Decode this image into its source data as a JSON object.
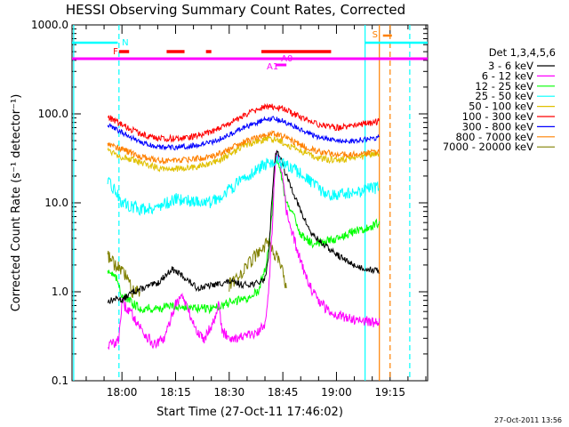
{
  "chart_data": {
    "type": "line",
    "title": "HESSI Observing Summary Count Rates, Corrected",
    "xlabel": "Start Time (27-Oct-11 17:46:02)",
    "ylabel": "Corrected Count Rate (s⁻¹ detector⁻¹)",
    "yscale": "log",
    "ylim": [
      0.1,
      1000
    ],
    "xlim": [
      "17:46:02",
      "19:25:30"
    ],
    "x_tick_labels": [
      "18:00",
      "18:15",
      "18:30",
      "18:45",
      "19:00",
      "19:15"
    ],
    "y_tick_labels": [
      "0.1",
      "1.0",
      "10.0",
      "100.0",
      "1000.0"
    ],
    "legend_title": "Det 1,3,4,5,6",
    "legend_position": "right",
    "grid": false,
    "timestamp": "27-Oct-2011 13:56",
    "series": [
      {
        "name": "3 - 6 keV",
        "color": "#000000",
        "x": [
          "17:56",
          "17:59",
          "18:00",
          "18:03",
          "18:06",
          "18:10",
          "18:14",
          "18:17",
          "18:21",
          "18:26",
          "18:30",
          "18:34",
          "18:38",
          "18:40",
          "18:41",
          "18:42",
          "18:43",
          "18:44",
          "18:46",
          "18:48",
          "18:50",
          "18:53",
          "18:56",
          "18:59",
          "19:03",
          "19:06",
          "19:09",
          "19:12"
        ],
        "y": [
          0.78,
          0.85,
          0.8,
          1.0,
          1.1,
          1.25,
          1.8,
          1.5,
          1.1,
          1.2,
          1.3,
          1.2,
          1.25,
          1.4,
          2.5,
          12,
          38,
          35,
          20,
          13,
          8,
          4.5,
          3.5,
          2.8,
          2.2,
          1.9,
          1.8,
          1.7
        ]
      },
      {
        "name": "6 - 12 keV",
        "color": "#ff00ff",
        "x": [
          "17:56",
          "17:59",
          "18:00",
          "18:03",
          "18:06",
          "18:09",
          "18:12",
          "18:15",
          "18:17",
          "18:19",
          "18:21",
          "18:23",
          "18:26",
          "18:27",
          "18:28",
          "18:31",
          "18:35",
          "18:38",
          "18:40",
          "18:41",
          "18:42",
          "18:43",
          "18:44",
          "18:45",
          "18:46",
          "18:48",
          "18:50",
          "18:52",
          "18:54",
          "18:57",
          "19:00",
          "19:04",
          "19:08",
          "19:12"
        ],
        "y": [
          0.25,
          0.28,
          0.75,
          0.55,
          0.35,
          0.25,
          0.3,
          0.75,
          0.9,
          0.55,
          0.35,
          0.3,
          0.5,
          0.8,
          0.35,
          0.3,
          0.32,
          0.34,
          0.45,
          1.0,
          5.0,
          35,
          30,
          18,
          8,
          4,
          2.2,
          1.3,
          0.9,
          0.65,
          0.55,
          0.5,
          0.47,
          0.45
        ]
      },
      {
        "name": "12 - 25 keV",
        "color": "#00ff00",
        "x": [
          "17:56",
          "17:59",
          "18:00",
          "18:05",
          "18:10",
          "18:15",
          "18:20",
          "18:25",
          "18:30",
          "18:35",
          "18:38",
          "18:40",
          "18:41",
          "18:42",
          "18:43",
          "18:44",
          "18:46",
          "18:48",
          "18:50",
          "18:53",
          "18:56",
          "19:00",
          "19:05",
          "19:10",
          "19:12"
        ],
        "y": [
          1.8,
          1.3,
          0.9,
          0.65,
          0.65,
          0.7,
          0.65,
          0.65,
          0.75,
          0.85,
          1.0,
          1.8,
          3.0,
          8.0,
          35,
          25,
          10,
          7,
          4.5,
          3.5,
          3.6,
          4.0,
          4.8,
          5.5,
          6.0
        ]
      },
      {
        "name": "25 - 50 keV",
        "color": "#00ffff",
        "x": [
          "17:56",
          "17:58",
          "18:00",
          "18:05",
          "18:10",
          "18:15",
          "18:20",
          "18:25",
          "18:30",
          "18:35",
          "18:40",
          "18:43",
          "18:45",
          "18:48",
          "18:50",
          "18:53",
          "18:56",
          "19:00",
          "19:05",
          "19:10",
          "19:12"
        ],
        "y": [
          17,
          14,
          10,
          8.5,
          9,
          11,
          10.5,
          10,
          14,
          20,
          27,
          30,
          27,
          24,
          21,
          17,
          13,
          12,
          13,
          14.5,
          15
        ]
      },
      {
        "name": "50 - 100 keV",
        "color": "#e0c000",
        "x": [
          "17:56",
          "18:00",
          "18:05",
          "18:10",
          "18:15",
          "18:20",
          "18:25",
          "18:30",
          "18:35",
          "18:40",
          "18:43",
          "18:45",
          "18:48",
          "18:51",
          "18:55",
          "19:00",
          "19:05",
          "19:10",
          "19:12"
        ],
        "y": [
          40,
          33,
          28,
          25,
          24,
          25,
          27,
          35,
          45,
          52,
          52,
          48,
          42,
          37,
          32,
          30,
          32,
          35,
          36
        ]
      },
      {
        "name": "100 - 300 keV",
        "color": "#ff0000",
        "x": [
          "17:56",
          "18:00",
          "18:05",
          "18:10",
          "18:15",
          "18:20",
          "18:25",
          "18:30",
          "18:35",
          "18:40",
          "18:43",
          "18:45",
          "18:48",
          "18:51",
          "18:55",
          "19:00",
          "19:05",
          "19:10",
          "19:12"
        ],
        "y": [
          93,
          75,
          60,
          53,
          53,
          56,
          62,
          78,
          100,
          120,
          120,
          115,
          100,
          88,
          75,
          70,
          73,
          80,
          83
        ]
      },
      {
        "name": "300 - 800 keV",
        "color": "#0000ff",
        "x": [
          "17:56",
          "18:00",
          "18:05",
          "18:10",
          "18:15",
          "18:20",
          "18:25",
          "18:30",
          "18:35",
          "18:40",
          "18:43",
          "18:45",
          "18:48",
          "18:51",
          "18:55",
          "19:00",
          "19:05",
          "19:10",
          "19:12"
        ],
        "y": [
          75,
          62,
          48,
          42,
          42,
          44,
          48,
          58,
          72,
          86,
          88,
          83,
          72,
          63,
          55,
          50,
          50,
          53,
          55
        ]
      },
      {
        "name": "800 - 7000 keV",
        "color": "#ff8000",
        "x": [
          "17:56",
          "18:00",
          "18:05",
          "18:10",
          "18:15",
          "18:20",
          "18:25",
          "18:30",
          "18:35",
          "18:40",
          "18:43",
          "18:45",
          "18:48",
          "18:51",
          "18:55",
          "19:00",
          "19:05",
          "19:10",
          "19:12"
        ],
        "y": [
          47,
          40,
          33,
          30,
          30,
          31,
          33,
          40,
          50,
          58,
          60,
          56,
          49,
          43,
          38,
          35,
          35,
          37,
          38
        ]
      },
      {
        "name": "7000 - 20000 keV",
        "color": "#808000",
        "x": [
          "17:56",
          "17:58",
          "18:00",
          "18:02",
          "18:03",
          "18:05",
          "18:06",
          "18:10",
          "18:15",
          "18:20",
          "18:25",
          "18:30",
          "18:33",
          "18:35",
          "18:37",
          "18:39",
          "18:41",
          "18:42",
          "18:44",
          "18:45",
          "18:46"
        ],
        "y": [
          2.6,
          2.0,
          1.7,
          1.3,
          1.0,
          1.0,
          null,
          null,
          null,
          null,
          null,
          1.2,
          1.6,
          2.0,
          2.4,
          3.2,
          3.5,
          2.8,
          2.2,
          1.6,
          1.0
        ]
      }
    ],
    "attenuator_markers": [
      {
        "label": "S",
        "color": "#ff8000"
      },
      {
        "label": "N",
        "color": "#00ffff"
      },
      {
        "label": "F",
        "color": "#ff0000"
      },
      {
        "label": "A1",
        "color": "#ff00ff"
      },
      {
        "label": "A0",
        "color": "#ff00ff"
      }
    ]
  }
}
